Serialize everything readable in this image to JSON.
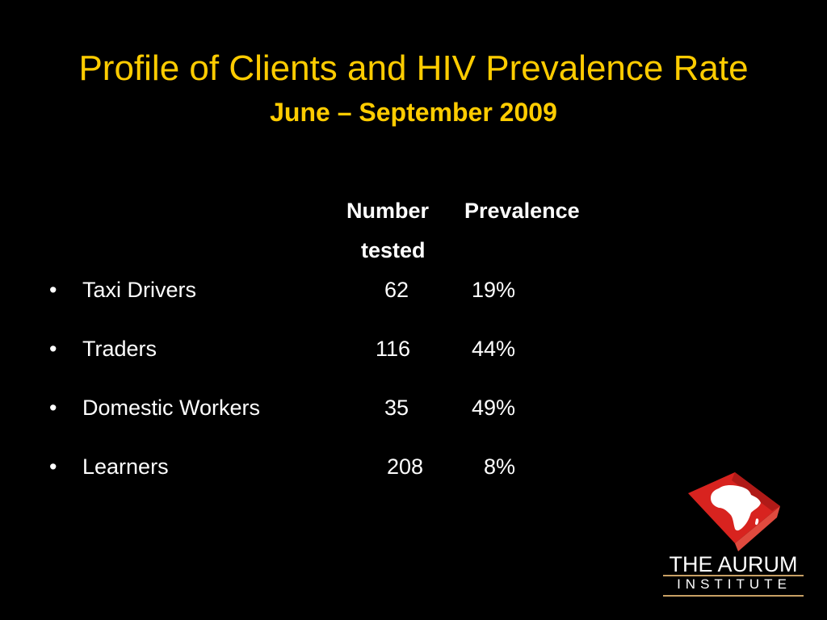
{
  "slide": {
    "title": "Profile of Clients and HIV Prevalence Rate",
    "subtitle": "June – September 2009"
  },
  "table": {
    "headers": {
      "number_line1": "Number",
      "number_line2": "tested",
      "prevalence": "Prevalence"
    },
    "bullet_glyph": "•",
    "rows": [
      {
        "label": "Taxi Drivers",
        "number": "62",
        "prevalence": "19%"
      },
      {
        "label": "Traders",
        "number": "116",
        "prevalence": "44%"
      },
      {
        "label": "Domestic Workers",
        "number": "35",
        "prevalence": "49%"
      },
      {
        "label": "Learners",
        "number": "208",
        "prevalence": "8%"
      }
    ]
  },
  "logo": {
    "line1": "THE AURUM",
    "line2": "INSTITUTE",
    "icon": "africa-map-logo-icon",
    "brand_color": "#d8231f",
    "rule_color": "#c8a064"
  },
  "colors": {
    "background": "#000000",
    "title": "#ffcc00",
    "body_text": "#ffffff"
  }
}
